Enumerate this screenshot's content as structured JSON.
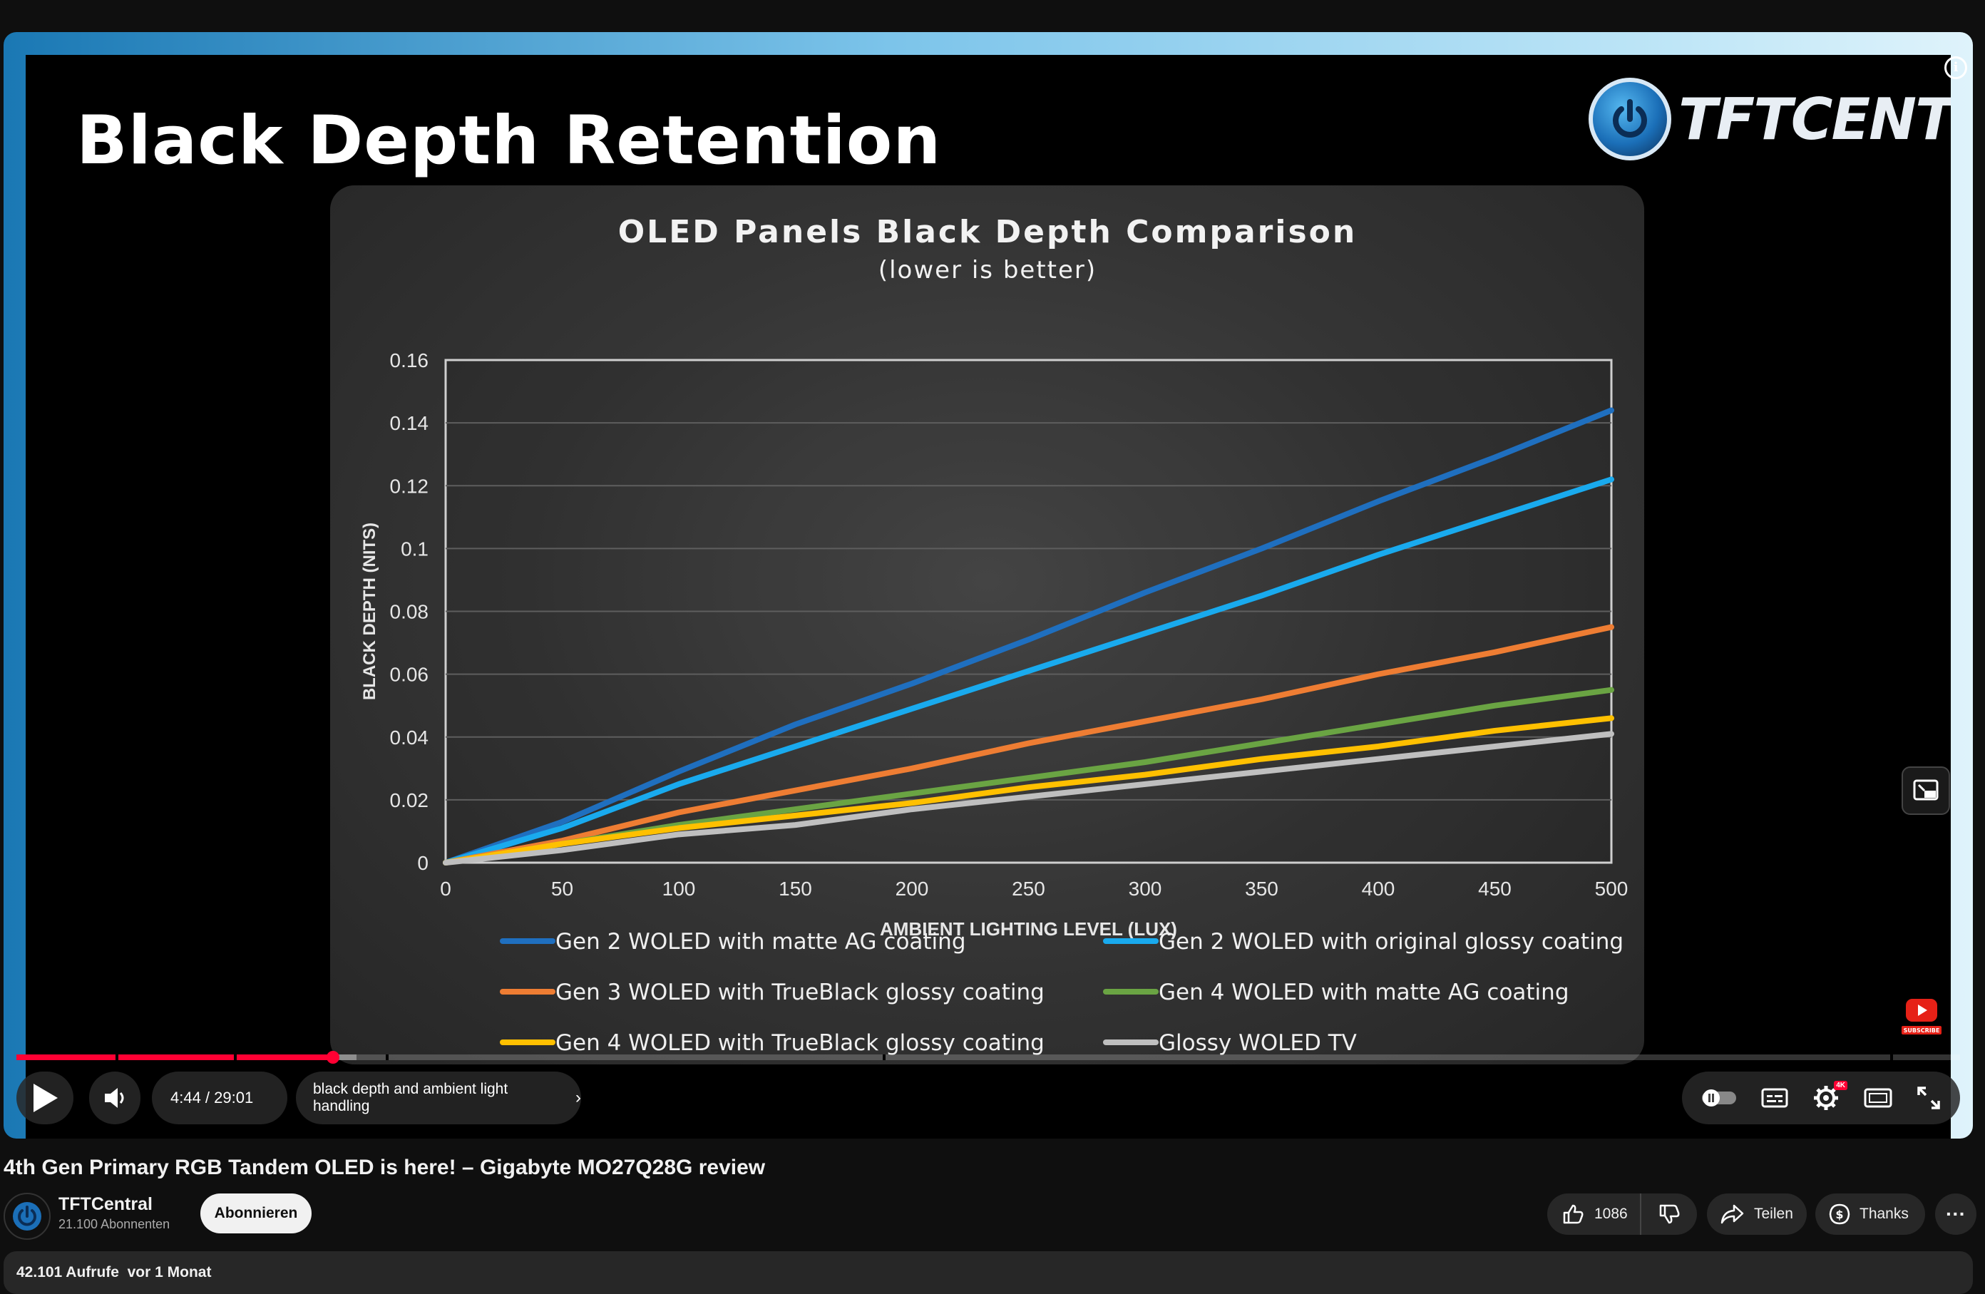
{
  "slide": {
    "title": "Black Depth Retention",
    "logo_text": "TFTCENTRAL"
  },
  "chart_data": {
    "type": "line",
    "title": "OLED Panels Black Depth Comparison",
    "subtitle": "(lower is better)",
    "xlabel": "AMBIENT LIGHTING LEVEL (LUX)",
    "ylabel": "BLACK DEPTH (NITS)",
    "x": [
      0,
      50,
      100,
      150,
      200,
      250,
      300,
      350,
      400,
      450,
      500
    ],
    "x_ticks": [
      "0",
      "50",
      "100",
      "150",
      "200",
      "250",
      "300",
      "350",
      "400",
      "450",
      "500"
    ],
    "y_ticks": [
      "0",
      "0.02",
      "0.04",
      "0.06",
      "0.08",
      "0.1",
      "0.12",
      "0.14",
      "0.16"
    ],
    "xlim": [
      0,
      500
    ],
    "ylim": [
      0,
      0.16
    ],
    "grid": "horizontal",
    "legend_position": "bottom",
    "series": [
      {
        "name": "Gen 2 WOLED with matte AG coating",
        "color": "#1f6fbf",
        "values": [
          0,
          0.013,
          0.029,
          0.044,
          0.057,
          0.071,
          0.086,
          0.1,
          0.115,
          0.129,
          0.144
        ]
      },
      {
        "name": "Gen 2 WOLED with original glossy coating",
        "color": "#19aaee",
        "values": [
          0,
          0.011,
          0.025,
          0.037,
          0.049,
          0.061,
          0.073,
          0.085,
          0.098,
          0.11,
          0.122
        ]
      },
      {
        "name": "Gen 3 WOLED with TrueBlack glossy coating",
        "color": "#ee7d33",
        "values": [
          0,
          0.007,
          0.016,
          0.023,
          0.03,
          0.038,
          0.045,
          0.052,
          0.06,
          0.067,
          0.075
        ]
      },
      {
        "name": "Gen 4 WOLED with matte AG coating",
        "color": "#6aa443",
        "values": [
          0,
          0.006,
          0.012,
          0.017,
          0.022,
          0.027,
          0.032,
          0.038,
          0.044,
          0.05,
          0.055
        ]
      },
      {
        "name": "Gen 4 WOLED with TrueBlack glossy coating",
        "color": "#ffc000",
        "values": [
          0,
          0.006,
          0.011,
          0.015,
          0.019,
          0.024,
          0.028,
          0.033,
          0.037,
          0.042,
          0.046
        ]
      },
      {
        "name": "Glossy WOLED TV",
        "color": "#bfbfbf",
        "values": [
          0,
          0.004,
          0.009,
          0.012,
          0.017,
          0.021,
          0.025,
          0.029,
          0.033,
          0.037,
          0.041
        ]
      }
    ]
  },
  "player": {
    "time": "4:44 / 29:01",
    "chapter": "black depth and ambient light handling",
    "progress_fraction": 0.163,
    "buffered_fraction": 0.175,
    "hd_badge": "4K",
    "subscribe_watermark": "SUBSCRIBE"
  },
  "video": {
    "title": "4th Gen Primary RGB Tandem OLED is here! – Gigabyte MO27Q28G review",
    "channel": "TFTCentral",
    "subscribers": "21.100 Abonnenten",
    "subscribe_label": "Abonnieren",
    "likes": "1086",
    "share_label": "Teilen",
    "thanks_label": "Thanks",
    "more_label": "···",
    "views": "42.101 Aufrufe",
    "date": "vor 1 Monat"
  },
  "colors": {
    "progress_played": "#ff0033",
    "background": "#0f0f0f",
    "pill": "#272727"
  }
}
